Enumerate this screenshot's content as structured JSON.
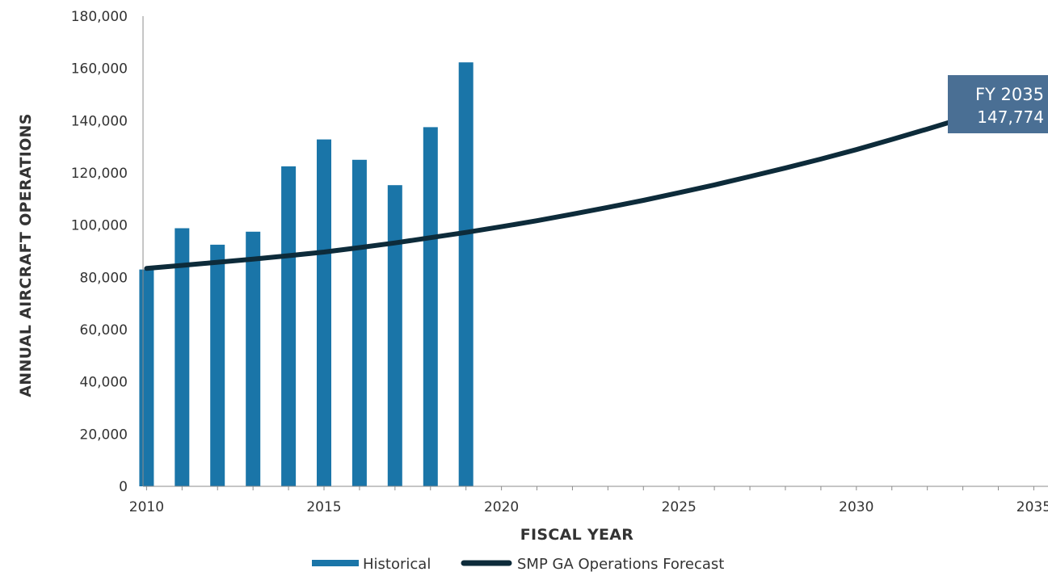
{
  "chart_data": {
    "type": "bar+line",
    "xlabel": "FISCAL YEAR",
    "ylabel": "ANNUAL AIRCRAFT OPERATIONS",
    "xlim": [
      2009.9,
      2035.4
    ],
    "ylim": [
      0,
      180000
    ],
    "x_ticks": [
      "2010",
      "2015",
      "2020",
      "2025",
      "2030",
      "2035"
    ],
    "y_ticks": [
      "0",
      "20,000",
      "40,000",
      "60,000",
      "80,000",
      "100,000",
      "120,000",
      "140,000",
      "160,000",
      "180,000"
    ],
    "grid": false,
    "legend_position": "bottom",
    "series": [
      {
        "name": "Historical",
        "type": "bar",
        "color": "#1a75a8",
        "x": [
          2010,
          2011,
          2012,
          2013,
          2014,
          2015,
          2016,
          2017,
          2018,
          2019
        ],
        "values": [
          83000,
          98800,
          92500,
          97500,
          122500,
          132800,
          125000,
          115300,
          137500,
          162300
        ]
      },
      {
        "name": "SMP GA Operations Forecast",
        "type": "line",
        "color": "#0d2b3a",
        "x": [
          2010,
          2011,
          2012,
          2013,
          2014,
          2015,
          2016,
          2017,
          2018,
          2019,
          2020,
          2021,
          2022,
          2023,
          2024,
          2025,
          2026,
          2027,
          2028,
          2029,
          2030,
          2031,
          2032,
          2033,
          2034,
          2035
        ],
        "values": [
          83400,
          84600,
          85800,
          87000,
          88300,
          89700,
          91400,
          93200,
          95200,
          97200,
          99400,
          101700,
          104200,
          106800,
          109500,
          112400,
          115400,
          118600,
          121900,
          125300,
          128900,
          132800,
          136800,
          140900,
          144300,
          147774
        ]
      }
    ],
    "annotation": {
      "line1": "FY 2035",
      "line2": "147,774",
      "color": "#4a6f94"
    }
  }
}
